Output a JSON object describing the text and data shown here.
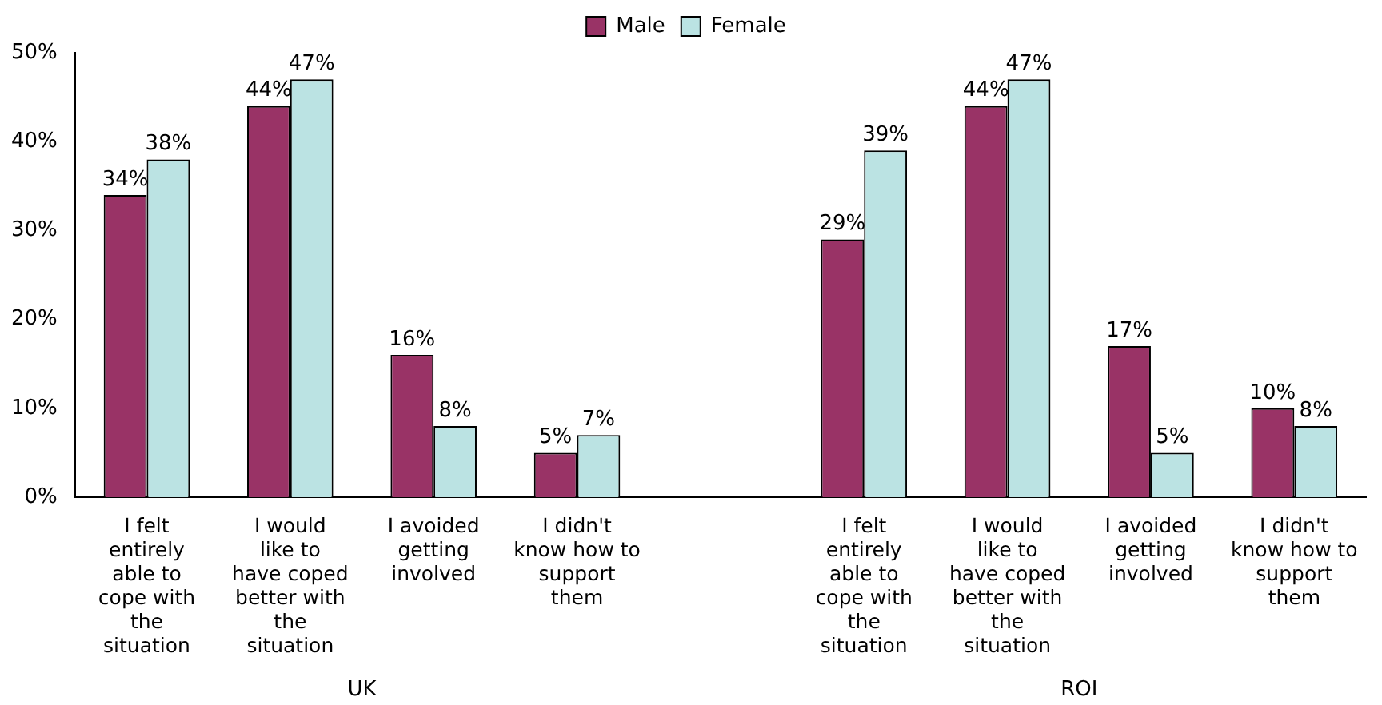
{
  "chart_data": {
    "type": "bar",
    "categories": [
      "I felt entirely able to cope with the situation",
      "I would like to have coped better with the situation",
      "I avoided getting involved",
      "I didn't know how to support them",
      null,
      "I felt entirely able to cope with the situation",
      "I would like to have coped better with the situation",
      "I avoided getting involved",
      "I didn't know how to support them"
    ],
    "series": [
      {
        "name": "Male",
        "color": "#993366",
        "values": [
          34,
          44,
          16,
          5,
          null,
          29,
          44,
          17,
          10
        ],
        "value_labels": [
          "34%",
          "44%",
          "16%",
          "5%",
          null,
          "29%",
          "44%",
          "17%",
          "10%"
        ]
      },
      {
        "name": "Female",
        "color": "#bbe3e3",
        "values": [
          38,
          47,
          8,
          7,
          null,
          39,
          47,
          5,
          8
        ],
        "value_labels": [
          "38%",
          "47%",
          "8%",
          "7%",
          null,
          "39%",
          "47%",
          "5%",
          "8%"
        ]
      }
    ],
    "ylim": [
      0,
      50
    ],
    "yticks": [
      {
        "value": 0,
        "label": "0%"
      },
      {
        "value": 10,
        "label": "10%"
      },
      {
        "value": 20,
        "label": "20%"
      },
      {
        "value": 30,
        "label": "30%"
      },
      {
        "value": 40,
        "label": "40%"
      },
      {
        "value": 50,
        "label": "50%"
      }
    ],
    "grid": false,
    "legend": "top",
    "annotations": [
      "UK",
      "ROI"
    ]
  }
}
